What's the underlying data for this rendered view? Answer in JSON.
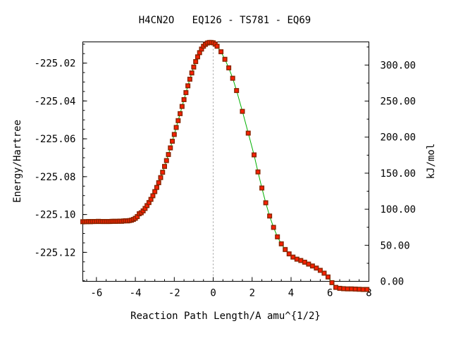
{
  "chart_data": {
    "type": "line",
    "title": "H4CN2O   EQ126 - TS781 - EQ69",
    "xlabel": "Reaction Path Length/A amu^{1/2}",
    "ylabel": "Energy/Hartree",
    "y2label": "kJ/mol",
    "xlim": [
      -6.7,
      8
    ],
    "ylim": [
      -225.1353,
      -225.0088
    ],
    "y2lim": [
      0,
      332.1
    ],
    "x_ticks": [
      -6,
      -4,
      -2,
      0,
      2,
      4,
      6,
      8
    ],
    "x_tick_labels": [
      "-6",
      "-4",
      "-2",
      "0",
      "2",
      "4",
      "6",
      "8"
    ],
    "y_ticks": [
      -225.02,
      -225.04,
      -225.06,
      -225.08,
      -225.1,
      -225.12
    ],
    "y_tick_labels": [
      "-225.02",
      "-225.04",
      "-225.06",
      "-225.08",
      "-225.10",
      "-225.12"
    ],
    "y2_ticks": [
      0,
      50,
      100,
      150,
      200,
      250,
      300
    ],
    "y2_tick_labels": [
      "0.00",
      "50.00",
      "100.00",
      "150.00",
      "200.00",
      "250.00",
      "300.00"
    ],
    "reference_line_x": 0,
    "grid": false,
    "series": [
      {
        "color": "#00b000",
        "marker_color": "#ff2000",
        "x": [
          -6.7,
          -6.6,
          -6.5,
          -6.4,
          -6.3,
          -6.2,
          -6.1,
          -6.0,
          -5.9,
          -5.8,
          -5.7,
          -5.6,
          -5.5,
          -5.4,
          -5.3,
          -5.2,
          -5.1,
          -5.0,
          -4.9,
          -4.8,
          -4.7,
          -4.6,
          -4.5,
          -4.4,
          -4.3,
          -4.2,
          -4.1,
          -4.0,
          -3.9,
          -3.8,
          -3.7,
          -3.6,
          -3.5,
          -3.4,
          -3.3,
          -3.2,
          -3.1,
          -3.0,
          -2.9,
          -2.8,
          -2.7,
          -2.6,
          -2.5,
          -2.4,
          -2.3,
          -2.2,
          -2.1,
          -2.0,
          -1.9,
          -1.8,
          -1.7,
          -1.6,
          -1.5,
          -1.4,
          -1.3,
          -1.2,
          -1.1,
          -1.0,
          -0.9,
          -0.8,
          -0.7,
          -0.6,
          -0.5,
          -0.4,
          -0.3,
          -0.2,
          -0.1,
          0.0,
          0.1,
          0.2,
          0.4,
          0.6,
          0.8,
          1.0,
          1.2,
          1.5,
          1.8,
          2.1,
          2.3,
          2.5,
          2.7,
          2.9,
          3.1,
          3.3,
          3.5,
          3.7,
          3.9,
          4.1,
          4.3,
          4.5,
          4.7,
          4.9,
          5.1,
          5.3,
          5.5,
          5.7,
          5.9,
          6.1,
          6.3,
          6.5,
          6.7,
          6.9,
          7.1,
          7.3,
          7.5,
          7.7,
          7.9
        ],
        "y": [
          -225.1038,
          -225.1038,
          -225.1038,
          -225.1037,
          -225.1038,
          -225.1037,
          -225.1037,
          -225.1037,
          -225.1036,
          -225.1037,
          -225.1037,
          -225.1037,
          -225.1037,
          -225.1037,
          -225.1037,
          -225.1036,
          -225.1036,
          -225.1036,
          -225.1036,
          -225.1035,
          -225.1036,
          -225.1034,
          -225.1033,
          -225.1034,
          -225.1032,
          -225.103,
          -225.1026,
          -225.102,
          -225.1011,
          -225.0996,
          -225.0991,
          -225.0981,
          -225.0968,
          -225.0953,
          -225.0937,
          -225.092,
          -225.0901,
          -225.0879,
          -225.0857,
          -225.0832,
          -225.0805,
          -225.0777,
          -225.0746,
          -225.0715,
          -225.0683,
          -225.0648,
          -225.0613,
          -225.0577,
          -225.054,
          -225.0504,
          -225.0467,
          -225.0429,
          -225.0393,
          -225.0356,
          -225.032,
          -225.0285,
          -225.0252,
          -225.0221,
          -225.0192,
          -225.0167,
          -225.0145,
          -225.0126,
          -225.0111,
          -225.0101,
          -225.0094,
          -225.0091,
          -225.0091,
          -225.0093,
          -225.01,
          -225.0111,
          -225.014,
          -225.018,
          -225.0225,
          -225.028,
          -225.0345,
          -225.0455,
          -225.057,
          -225.0685,
          -225.0775,
          -225.086,
          -225.0938,
          -225.1008,
          -225.1068,
          -225.1118,
          -225.1155,
          -225.1185,
          -225.1208,
          -225.1225,
          -225.1236,
          -225.1243,
          -225.1252,
          -225.1262,
          -225.1272,
          -225.1283,
          -225.1295,
          -225.131,
          -225.133,
          -225.136,
          -225.1385,
          -225.139,
          -225.1392,
          -225.1393,
          -225.1393,
          -225.1394,
          -225.1395,
          -225.1396,
          -225.1396
        ]
      }
    ]
  }
}
